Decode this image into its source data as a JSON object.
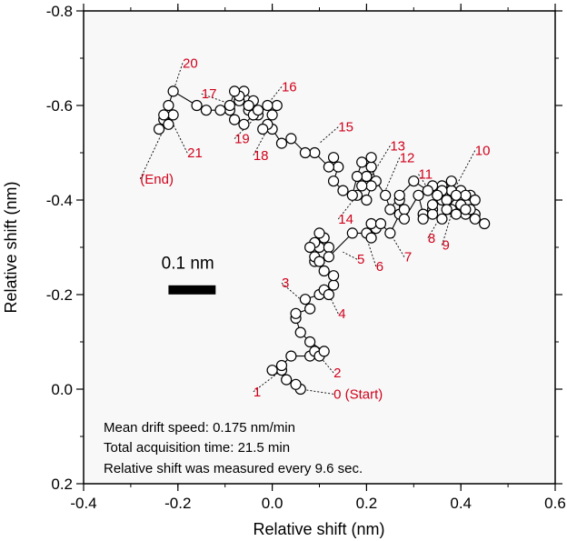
{
  "chart_data": {
    "type": "scatter",
    "title": "",
    "xlabel": "Relative shift (nm)",
    "ylabel": "Relative shift (nm)",
    "xlim": [
      -0.4,
      0.6
    ],
    "ylim": [
      0.2,
      -0.8
    ],
    "y_inverted": true,
    "x_ticks": [
      -0.4,
      -0.2,
      0.0,
      0.2,
      0.4,
      0.6
    ],
    "x_tick_labels": [
      "-0.4",
      "-0.2",
      "0.0",
      "0.2",
      "0.4",
      "0.6"
    ],
    "y_ticks": [
      0.2,
      0.0,
      -0.2,
      -0.4,
      -0.6,
      -0.8
    ],
    "y_tick_labels": [
      "0.2",
      "0.0",
      "-0.2",
      "-0.4",
      "-0.6",
      "-0.8"
    ],
    "grid": false,
    "plot_background": "#f8f8f8",
    "marker_style": "open-circle",
    "connected": true,
    "point_color": "#000000",
    "annotation_color": "#d0021b",
    "series": [
      {
        "x": [
          0.06,
          0.05,
          0.03,
          0.02,
          0.0,
          0.02,
          0.04,
          0.08,
          0.09,
          0.1,
          0.11,
          0.08,
          0.06,
          0.05,
          0.05,
          0.08,
          0.07,
          0.1,
          0.11,
          0.12,
          0.13,
          0.13,
          0.11,
          0.09,
          0.1,
          0.12,
          0.11,
          0.1,
          0.09,
          0.08,
          0.09,
          0.1,
          0.12,
          0.17,
          0.2,
          0.21,
          0.22,
          0.21,
          0.23,
          0.25,
          0.27,
          0.27,
          0.28,
          0.28,
          0.31,
          0.32,
          0.34,
          0.36,
          0.38,
          0.4,
          0.42,
          0.43,
          0.45,
          0.43,
          0.41,
          0.39,
          0.37,
          0.36,
          0.38,
          0.4,
          0.42,
          0.43,
          0.41,
          0.38,
          0.36,
          0.34,
          0.32,
          0.34,
          0.36,
          0.38,
          0.39,
          0.41,
          0.39,
          0.37,
          0.35,
          0.34,
          0.33,
          0.3,
          0.27,
          0.25,
          0.24,
          0.22,
          0.21,
          0.2,
          0.21,
          0.2,
          0.18,
          0.19,
          0.2,
          0.21,
          0.19,
          0.18,
          0.17,
          0.15,
          0.13,
          0.14,
          0.13,
          0.12,
          0.09,
          0.07,
          0.04,
          0.02,
          0.0,
          -0.01,
          -0.02,
          0.0,
          0.01,
          -0.01,
          -0.03,
          -0.05,
          -0.04,
          -0.06,
          -0.07,
          -0.09,
          -0.08,
          -0.06,
          -0.04,
          -0.03,
          -0.05,
          -0.07,
          -0.08,
          -0.09,
          -0.11,
          -0.14,
          -0.16,
          -0.21,
          -0.22,
          -0.21,
          -0.23,
          -0.22,
          -0.24,
          -0.23
        ],
        "y": [
          0.0,
          -0.01,
          -0.02,
          -0.04,
          -0.04,
          -0.05,
          -0.07,
          -0.07,
          -0.08,
          -0.07,
          -0.08,
          -0.1,
          -0.12,
          -0.15,
          -0.16,
          -0.17,
          -0.19,
          -0.2,
          -0.21,
          -0.2,
          -0.22,
          -0.24,
          -0.25,
          -0.27,
          -0.3,
          -0.3,
          -0.32,
          -0.33,
          -0.31,
          -0.3,
          -0.28,
          -0.27,
          -0.28,
          -0.33,
          -0.33,
          -0.32,
          -0.34,
          -0.35,
          -0.35,
          -0.33,
          -0.37,
          -0.4,
          -0.38,
          -0.36,
          -0.41,
          -0.37,
          -0.38,
          -0.4,
          -0.42,
          -0.42,
          -0.41,
          -0.37,
          -0.35,
          -0.36,
          -0.37,
          -0.39,
          -0.4,
          -0.43,
          -0.42,
          -0.39,
          -0.38,
          -0.4,
          -0.41,
          -0.38,
          -0.36,
          -0.37,
          -0.36,
          -0.39,
          -0.42,
          -0.44,
          -0.41,
          -0.38,
          -0.37,
          -0.38,
          -0.41,
          -0.43,
          -0.42,
          -0.44,
          -0.41,
          -0.38,
          -0.41,
          -0.44,
          -0.47,
          -0.45,
          -0.43,
          -0.4,
          -0.41,
          -0.43,
          -0.45,
          -0.49,
          -0.48,
          -0.45,
          -0.41,
          -0.42,
          -0.44,
          -0.47,
          -0.49,
          -0.47,
          -0.5,
          -0.5,
          -0.53,
          -0.52,
          -0.55,
          -0.56,
          -0.55,
          -0.58,
          -0.6,
          -0.6,
          -0.58,
          -0.59,
          -0.61,
          -0.63,
          -0.61,
          -0.59,
          -0.57,
          -0.56,
          -0.58,
          -0.59,
          -0.6,
          -0.62,
          -0.63,
          -0.6,
          -0.59,
          -0.59,
          -0.6,
          -0.63,
          -0.6,
          -0.58,
          -0.57,
          -0.56,
          -0.55,
          -0.58
        ]
      }
    ],
    "annotations": [
      {
        "text": "0 (Start)",
        "x": 0.13,
        "y": 0.02,
        "px": 0.06,
        "py": 0.0
      },
      {
        "text": "1",
        "x": -0.04,
        "y": 0.015,
        "px": 0.02,
        "py": -0.04
      },
      {
        "text": "2",
        "x": 0.13,
        "y": -0.025,
        "px": 0.1,
        "py": -0.07
      },
      {
        "text": "3",
        "x": 0.02,
        "y": -0.215,
        "px": 0.06,
        "py": -0.19
      },
      {
        "text": "4",
        "x": 0.14,
        "y": -0.15,
        "px": 0.12,
        "py": -0.2
      },
      {
        "text": "5",
        "x": 0.18,
        "y": -0.265,
        "px": 0.15,
        "py": -0.29
      },
      {
        "text": "6",
        "x": 0.22,
        "y": -0.25,
        "px": 0.2,
        "py": -0.32
      },
      {
        "text": "7",
        "x": 0.28,
        "y": -0.27,
        "px": 0.25,
        "py": -0.33
      },
      {
        "text": "8",
        "x": 0.33,
        "y": -0.31,
        "px": 0.36,
        "py": -0.37
      },
      {
        "text": "9",
        "x": 0.36,
        "y": -0.295,
        "px": 0.38,
        "py": -0.37
      },
      {
        "text": "10",
        "x": 0.43,
        "y": -0.495,
        "px": 0.39,
        "py": -0.43
      },
      {
        "text": "11",
        "x": 0.31,
        "y": -0.445,
        "px": 0.34,
        "py": -0.41
      },
      {
        "text": "12",
        "x": 0.27,
        "y": -0.48,
        "px": 0.24,
        "py": -0.42
      },
      {
        "text": "13",
        "x": 0.25,
        "y": -0.505,
        "px": 0.21,
        "py": -0.45
      },
      {
        "text": "14",
        "x": 0.14,
        "y": -0.35,
        "px": 0.18,
        "py": -0.41
      },
      {
        "text": "15",
        "x": 0.14,
        "y": -0.545,
        "px": 0.1,
        "py": -0.52
      },
      {
        "text": "16",
        "x": 0.02,
        "y": -0.63,
        "px": -0.02,
        "py": -0.59
      },
      {
        "text": "17",
        "x": -0.15,
        "y": -0.615,
        "px": -0.08,
        "py": -0.6
      },
      {
        "text": "18",
        "x": -0.04,
        "y": -0.485,
        "px": -0.01,
        "py": -0.55
      },
      {
        "text": "19",
        "x": -0.08,
        "y": -0.52,
        "px": -0.04,
        "py": -0.57
      },
      {
        "text": "20",
        "x": -0.19,
        "y": -0.68,
        "px": -0.21,
        "py": -0.63
      },
      {
        "text": "21",
        "x": -0.18,
        "y": -0.49,
        "px": -0.21,
        "py": -0.56
      },
      {
        "text": "(End)",
        "x": -0.28,
        "y": -0.435,
        "px": -0.23,
        "py": -0.55
      }
    ],
    "scale_bar": {
      "label": "0.1 nm",
      "length": 0.1,
      "x_start": -0.22,
      "y": -0.21,
      "label_x": -0.235,
      "label_y": -0.255
    },
    "notes": [
      "Mean drift speed: 0.175 nm/min",
      "Total acquisition time: 21.5 min",
      "Relative shift was measured every 9.6 sec."
    ]
  }
}
